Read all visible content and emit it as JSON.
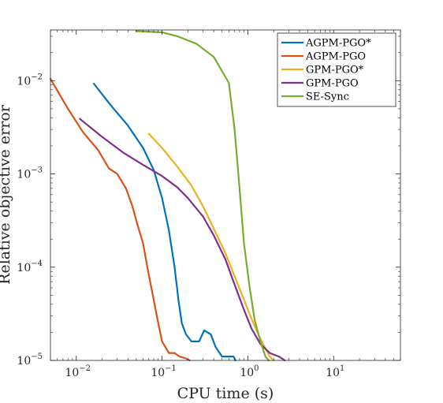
{
  "chart_data": {
    "type": "line",
    "xlabel": "CPU time (s)",
    "ylabel": "Relative objective error",
    "x_scale": "log",
    "y_scale": "log",
    "xlim": [
      0.005,
      60
    ],
    "ylim": [
      1e-05,
      0.035
    ],
    "grid": false,
    "legend_position": "top-right",
    "x_ticks": [
      {
        "value": 0.01,
        "base": "10",
        "exp": "−2"
      },
      {
        "value": 0.1,
        "base": "10",
        "exp": "−1"
      },
      {
        "value": 1,
        "base": "10",
        "exp": "0"
      },
      {
        "value": 10,
        "base": "10",
        "exp": "1"
      }
    ],
    "y_ticks": [
      {
        "value": 1e-05,
        "base": "10",
        "exp": "−5"
      },
      {
        "value": 0.0001,
        "base": "10",
        "exp": "−4"
      },
      {
        "value": 0.001,
        "base": "10",
        "exp": "−3"
      },
      {
        "value": 0.01,
        "base": "10",
        "exp": "−2"
      }
    ],
    "series": [
      {
        "name": "AGPM-PGO*",
        "color": "#0072BD",
        "points": [
          [
            0.016,
            0.0093
          ],
          [
            0.025,
            0.0055
          ],
          [
            0.04,
            0.0033
          ],
          [
            0.06,
            0.0019
          ],
          [
            0.08,
            0.0011
          ],
          [
            0.1,
            0.00055
          ],
          [
            0.12,
            0.00025
          ],
          [
            0.14,
            0.0001
          ],
          [
            0.155,
            4.5e-05
          ],
          [
            0.17,
            2.5e-05
          ],
          [
            0.19,
            1.9e-05
          ],
          [
            0.22,
            1.6e-05
          ],
          [
            0.27,
            1.6e-05
          ],
          [
            0.31,
            2.1e-05
          ],
          [
            0.37,
            1.9e-05
          ],
          [
            0.42,
            1.4e-05
          ],
          [
            0.5,
            1.1e-05
          ],
          [
            0.68,
            1.1e-05
          ],
          [
            0.72,
            1e-05
          ]
        ]
      },
      {
        "name": "AGPM-PGO",
        "color": "#D95319",
        "points": [
          [
            0.005,
            0.0105
          ],
          [
            0.008,
            0.005
          ],
          [
            0.012,
            0.0028
          ],
          [
            0.018,
            0.0018
          ],
          [
            0.024,
            0.00115
          ],
          [
            0.03,
            0.001
          ],
          [
            0.038,
            0.0007
          ],
          [
            0.045,
            0.00045
          ],
          [
            0.052,
            0.00028
          ],
          [
            0.06,
            0.00018
          ],
          [
            0.068,
            9.5e-05
          ],
          [
            0.078,
            5e-05
          ],
          [
            0.088,
            2.8e-05
          ],
          [
            0.1,
            1.6e-05
          ],
          [
            0.12,
            1.2e-05
          ],
          [
            0.14,
            1.2e-05
          ],
          [
            0.16,
            1.1e-05
          ],
          [
            0.19,
            1.05e-05
          ],
          [
            0.21,
            1e-05
          ]
        ]
      },
      {
        "name": "GPM-PGO*",
        "color": "#EDB120",
        "points": [
          [
            0.07,
            0.0027
          ],
          [
            0.1,
            0.0019
          ],
          [
            0.15,
            0.0012
          ],
          [
            0.22,
            0.00075
          ],
          [
            0.3,
            0.00045
          ],
          [
            0.4,
            0.00026
          ],
          [
            0.55,
            0.00014
          ],
          [
            0.7,
            8e-05
          ],
          [
            0.9,
            4.5e-05
          ],
          [
            1.1,
            2.8e-05
          ],
          [
            1.4,
            1.7e-05
          ],
          [
            1.8,
            1.1e-05
          ],
          [
            2,
            1e-05
          ]
        ]
      },
      {
        "name": "GPM-PGO",
        "color": "#7E2F8E",
        "points": [
          [
            0.011,
            0.0039
          ],
          [
            0.02,
            0.0025
          ],
          [
            0.035,
            0.0017
          ],
          [
            0.06,
            0.00125
          ],
          [
            0.1,
            0.00095
          ],
          [
            0.15,
            0.00072
          ],
          [
            0.2,
            0.00055
          ],
          [
            0.3,
            0.00035
          ],
          [
            0.4,
            0.00022
          ],
          [
            0.55,
            0.00012
          ],
          [
            0.7,
            6.5e-05
          ],
          [
            0.9,
            3.5e-05
          ],
          [
            1.1,
            2.2e-05
          ],
          [
            1.4,
            1.5e-05
          ],
          [
            1.8,
            1.2e-05
          ],
          [
            2.3,
            1.1e-05
          ],
          [
            2.7,
            1e-05
          ]
        ]
      },
      {
        "name": "SE-Sync",
        "color": "#77AC30",
        "points": [
          [
            0.05,
            0.034
          ],
          [
            0.1,
            0.033
          ],
          [
            0.15,
            0.03
          ],
          [
            0.25,
            0.025
          ],
          [
            0.4,
            0.018
          ],
          [
            0.6,
            0.0095
          ],
          [
            0.7,
            0.003
          ],
          [
            0.8,
            0.0007
          ],
          [
            0.9,
            0.00018
          ],
          [
            1.05,
            6e-05
          ],
          [
            1.2,
            2.7e-05
          ],
          [
            1.4,
            1.6e-05
          ],
          [
            1.6,
            1.1e-05
          ],
          [
            1.75,
            1e-05
          ]
        ]
      }
    ]
  }
}
